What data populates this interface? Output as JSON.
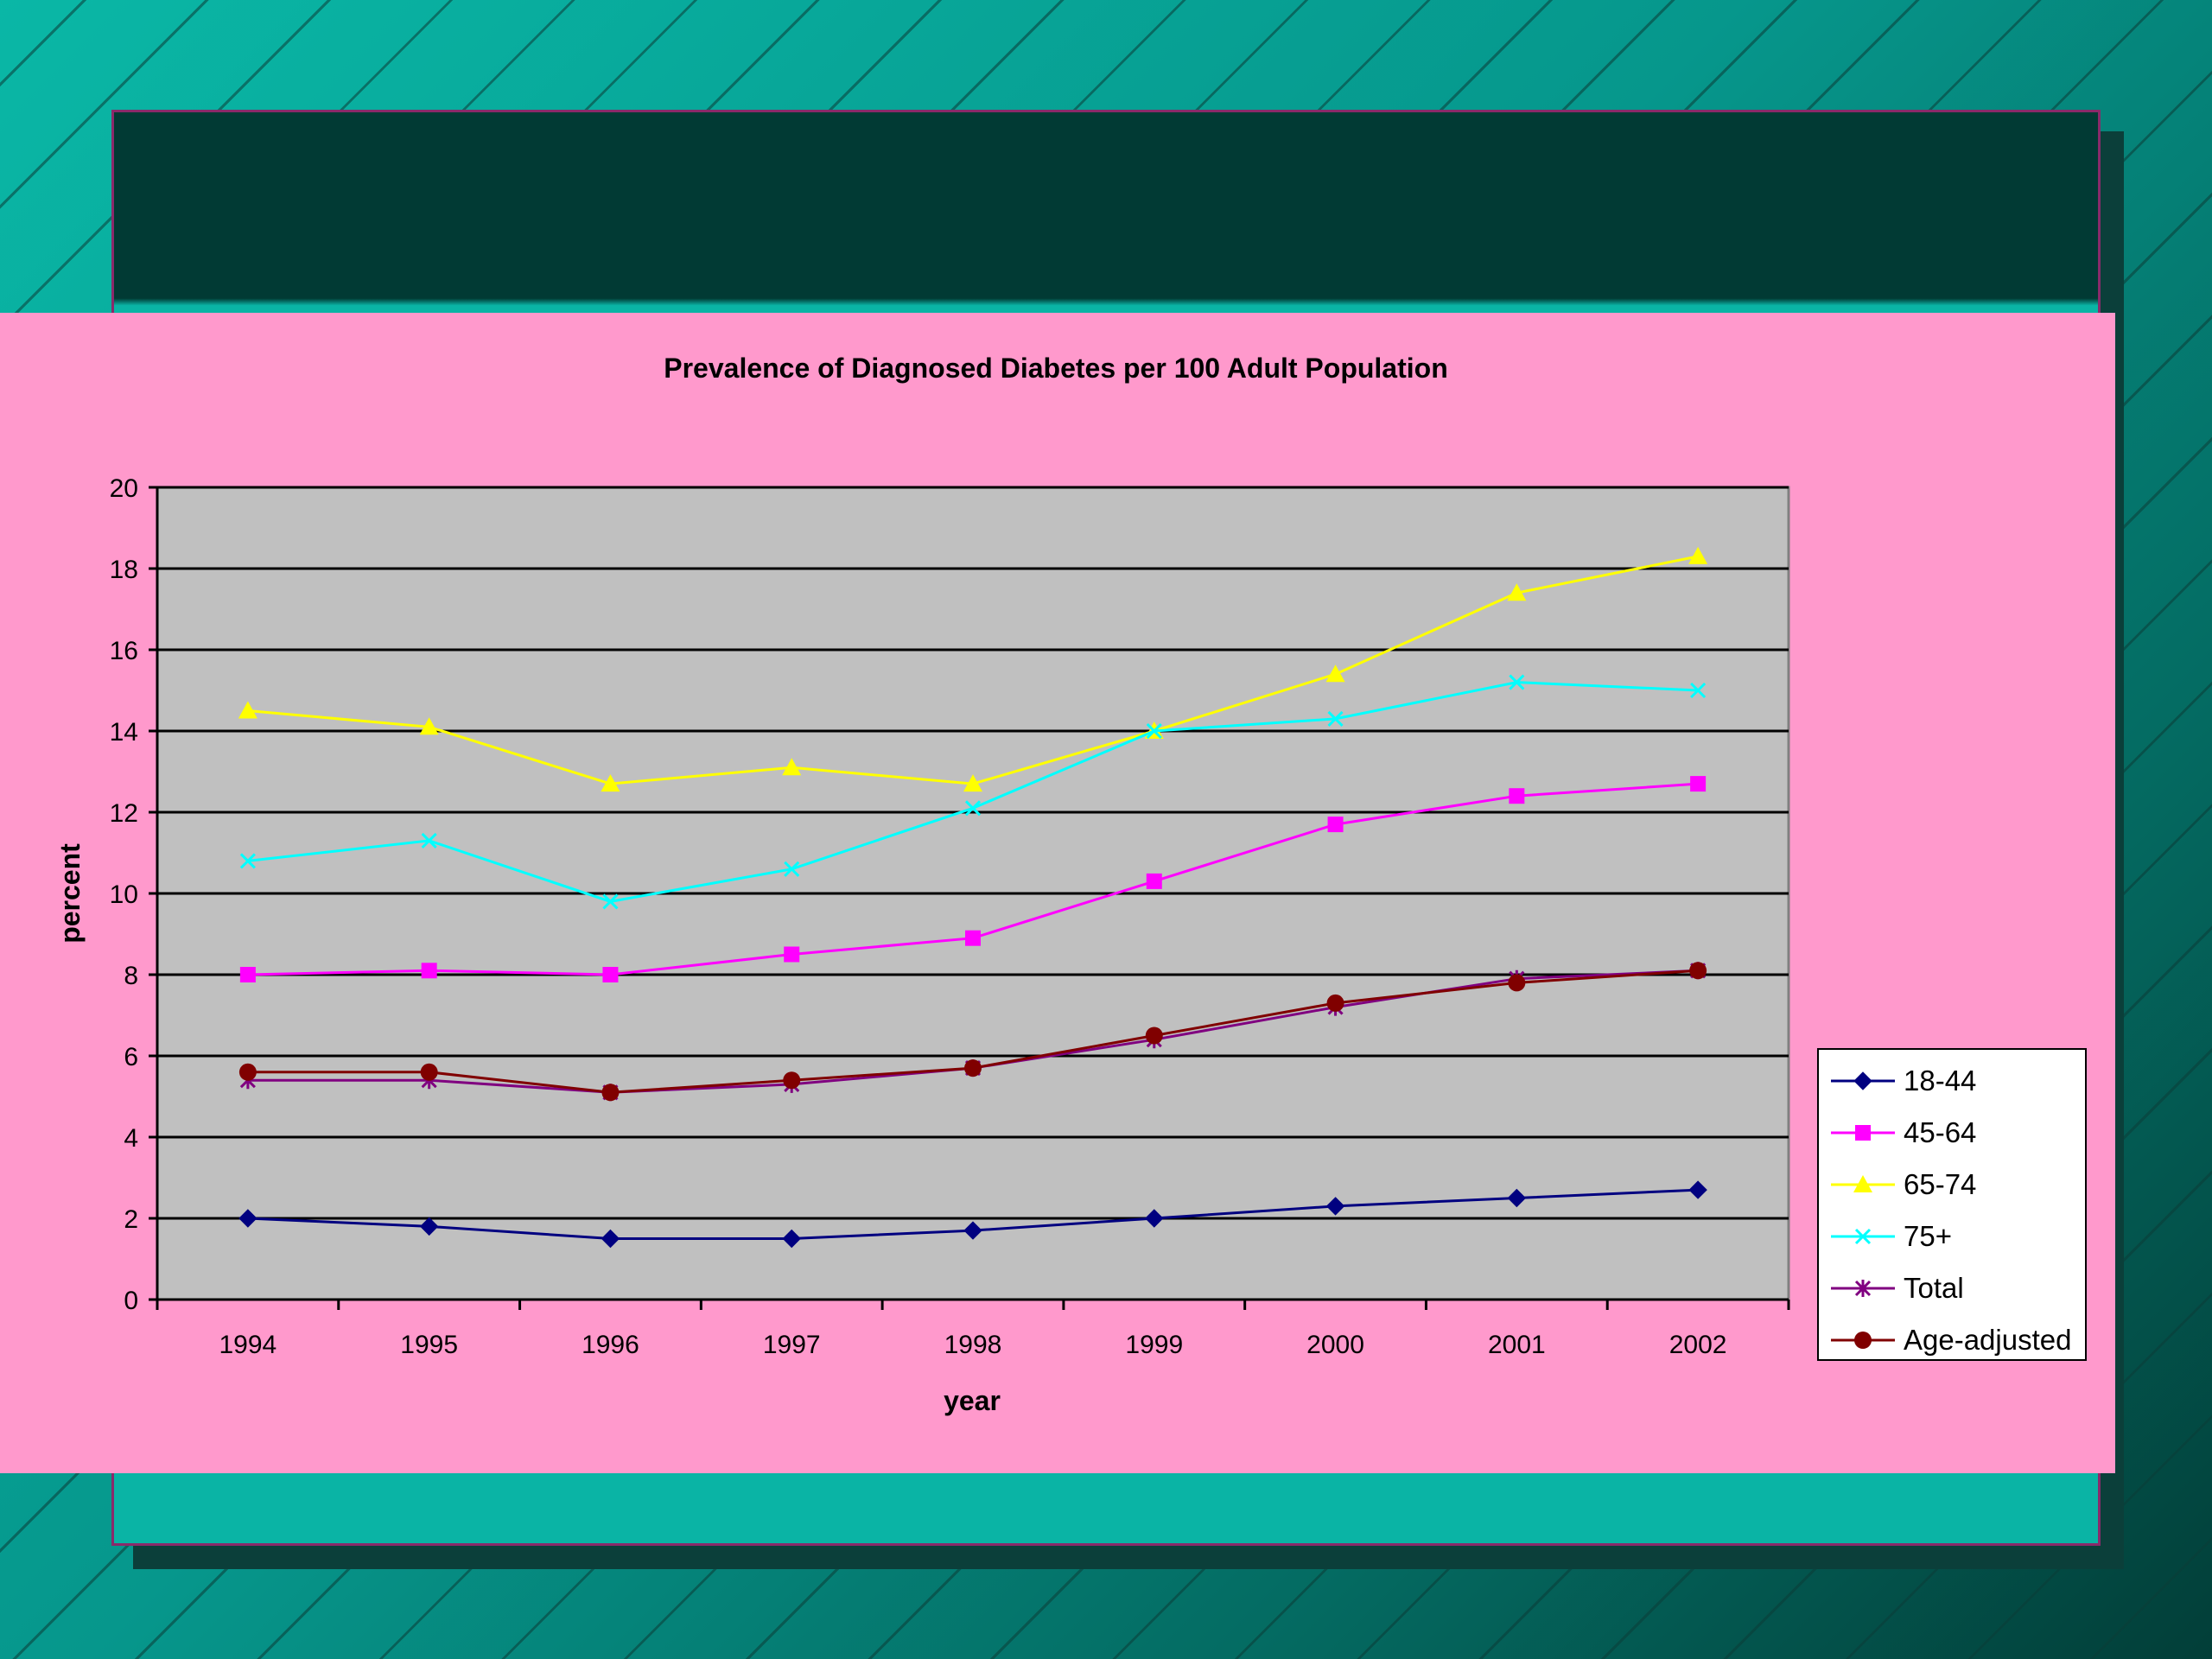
{
  "chart_data": {
    "type": "line",
    "title": "Prevalence of Diagnosed Diabetes per 100 Adult Population",
    "xlabel": "year",
    "ylabel": "percent",
    "categories": [
      "1994",
      "1995",
      "1996",
      "1997",
      "1998",
      "1999",
      "2000",
      "2001",
      "2002"
    ],
    "ylim": [
      0,
      20
    ],
    "yticks": [
      0,
      2,
      4,
      6,
      8,
      10,
      12,
      14,
      16,
      18,
      20
    ],
    "grid": true,
    "legend_position": "right",
    "plot_background": "#c0c0c0",
    "series": [
      {
        "name": "18-44",
        "color": "#000080",
        "marker": "diamond",
        "values": [
          2.0,
          1.8,
          1.5,
          1.5,
          1.7,
          2.0,
          2.3,
          2.5,
          2.7
        ]
      },
      {
        "name": "45-64",
        "color": "#ff00ff",
        "marker": "square",
        "values": [
          8.0,
          8.1,
          8.0,
          8.5,
          8.9,
          10.3,
          11.7,
          12.4,
          12.7
        ]
      },
      {
        "name": "65-74",
        "color": "#ffff00",
        "marker": "triangle",
        "values": [
          14.5,
          14.1,
          12.7,
          13.1,
          12.7,
          14.0,
          15.4,
          17.4,
          18.3
        ]
      },
      {
        "name": "75+",
        "color": "#00ffff",
        "marker": "x",
        "values": [
          10.8,
          11.3,
          9.8,
          10.6,
          12.1,
          14.0,
          14.3,
          15.2,
          15.0
        ]
      },
      {
        "name": "Total",
        "color": "#800080",
        "marker": "asterisk",
        "values": [
          5.4,
          5.4,
          5.1,
          5.3,
          5.7,
          6.4,
          7.2,
          7.9,
          8.1
        ]
      },
      {
        "name": "Age-adjusted",
        "color": "#800000",
        "marker": "circle",
        "values": [
          5.6,
          5.6,
          5.1,
          5.4,
          5.7,
          6.5,
          7.3,
          7.8,
          8.1
        ]
      }
    ]
  }
}
